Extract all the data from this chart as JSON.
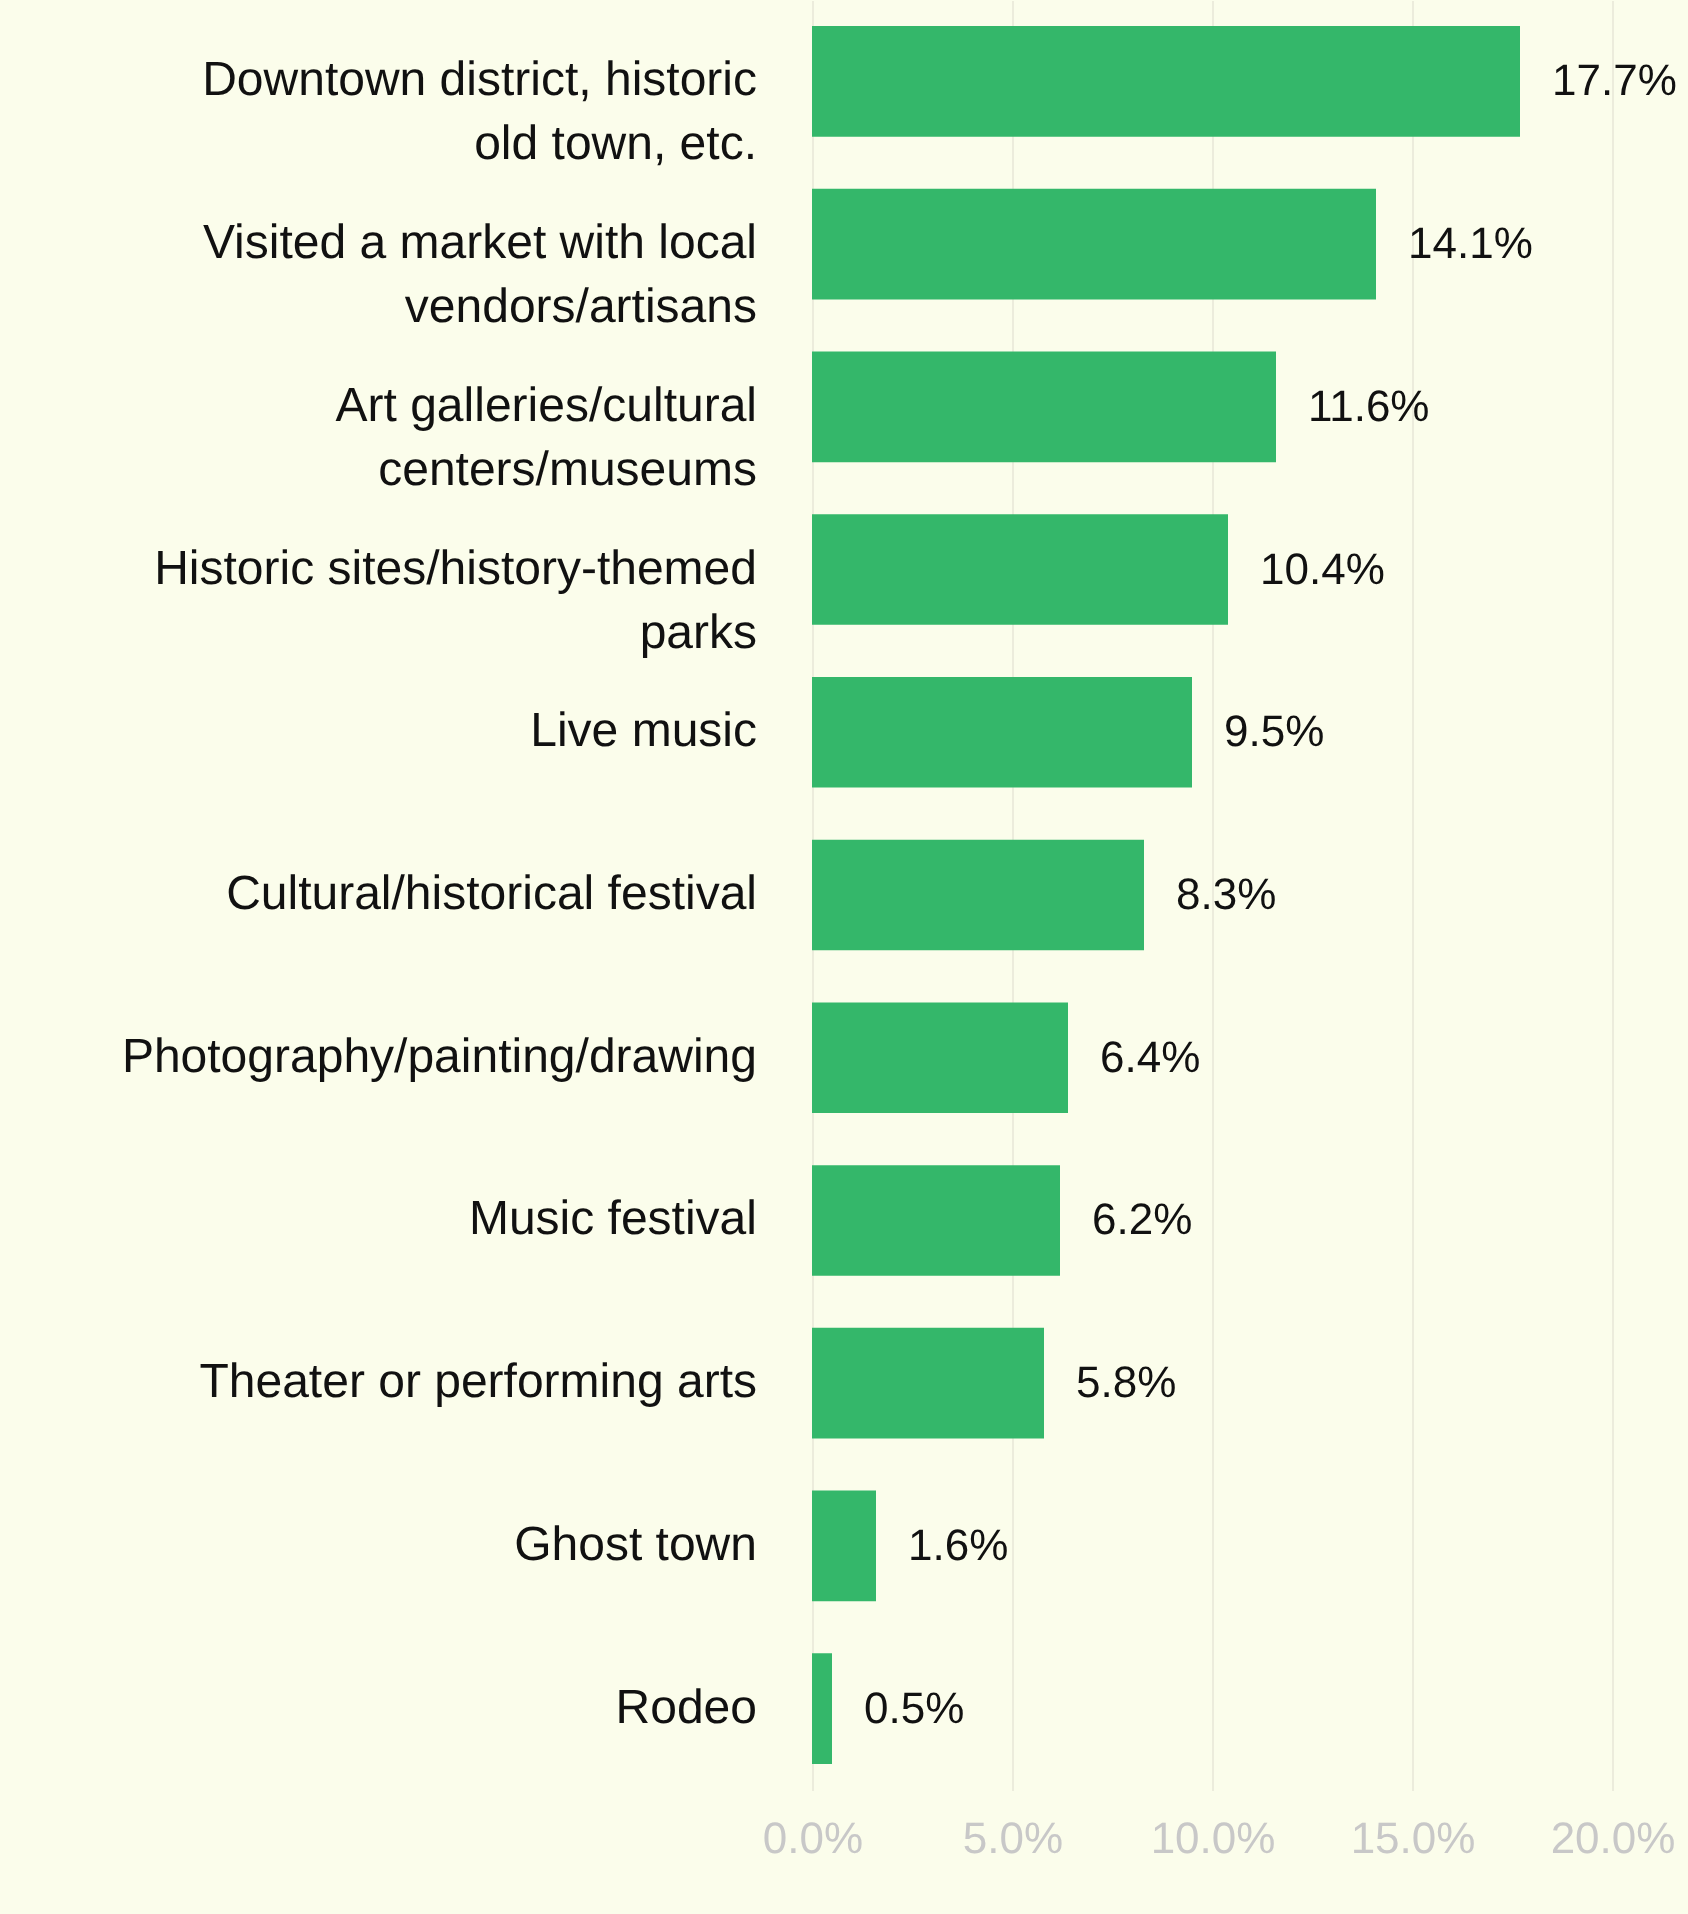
{
  "chart_data": {
    "type": "bar",
    "orientation": "horizontal",
    "categories": [
      "Downtown district, historic old town, etc.",
      "Visited a market with local vendors/artisans",
      "Art galleries/cultural centers/museums",
      "Historic sites/history-themed parks",
      "Live music",
      "Cultural/historical festival",
      "Photography/painting/drawing",
      "Music festival",
      "Theater or performing arts",
      "Ghost town",
      "Rodeo"
    ],
    "values": [
      17.7,
      14.1,
      11.6,
      10.4,
      9.5,
      8.3,
      6.4,
      6.2,
      5.8,
      1.6,
      0.5
    ],
    "value_labels": [
      "17.7%",
      "14.1%",
      "11.6%",
      "10.4%",
      "9.5%",
      "8.3%",
      "6.4%",
      "6.2%",
      "5.8%",
      "1.6%",
      "0.5%"
    ],
    "color": "#34b76a",
    "xlim": [
      0,
      20
    ],
    "xticks": [
      {
        "value": 0,
        "label": "0.0%"
      },
      {
        "value": 5,
        "label": "5.0%"
      },
      {
        "value": 10,
        "label": "10.0%"
      },
      {
        "value": 15,
        "label": "15.0%"
      },
      {
        "value": 20,
        "label": "20.0%"
      }
    ],
    "grid": "x"
  }
}
